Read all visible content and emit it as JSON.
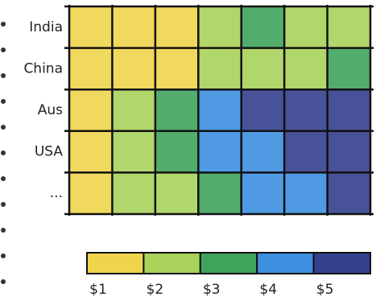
{
  "chart_data": {
    "type": "heatmap",
    "rows": [
      "India",
      "China",
      "Aus",
      "USA",
      "..."
    ],
    "values": [
      [
        1,
        1,
        1,
        2,
        3,
        2,
        2
      ],
      [
        1,
        1,
        1,
        2,
        2,
        2,
        3
      ],
      [
        1,
        2,
        3,
        4,
        5,
        5,
        5
      ],
      [
        1,
        2,
        3,
        4,
        4,
        5,
        5
      ],
      [
        1,
        2,
        2,
        3,
        4,
        4,
        5
      ]
    ],
    "colorscale": [
      "#f0d44c",
      "#a9d25b",
      "#3fa35c",
      "#3c8fe0",
      "#343f8e"
    ],
    "legend": {
      "ticks": [
        {
          "value": 1,
          "label": "$1"
        },
        {
          "value": 2,
          "label": "$2"
        },
        {
          "value": 3,
          "label": "$3"
        },
        {
          "value": 4,
          "label": "$4"
        },
        {
          "value": 5,
          "label": "$5"
        }
      ]
    }
  }
}
